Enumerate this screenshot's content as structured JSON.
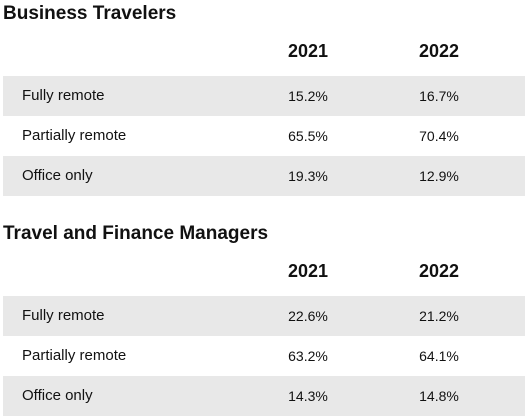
{
  "chart_data": [
    {
      "type": "table",
      "title": "Business Travelers",
      "columns": [
        "2021",
        "2022"
      ],
      "rows": [
        {
          "label": "Fully remote",
          "values": [
            "15.2%",
            "16.7%"
          ]
        },
        {
          "label": "Partially remote",
          "values": [
            "65.5%",
            "70.4%"
          ]
        },
        {
          "label": "Office only",
          "values": [
            "19.3%",
            "12.9%"
          ]
        }
      ]
    },
    {
      "type": "table",
      "title": "Travel and Finance Managers",
      "columns": [
        "2021",
        "2022"
      ],
      "rows": [
        {
          "label": "Fully remote",
          "values": [
            "22.6%",
            "21.2%"
          ]
        },
        {
          "label": "Partially remote",
          "values": [
            "63.2%",
            "64.1%"
          ]
        },
        {
          "label": "Office only",
          "values": [
            "14.3%",
            "14.8%"
          ]
        }
      ]
    }
  ],
  "colors": {
    "row_shade": "#e8e8e8",
    "text": "#111111",
    "background": "#ffffff"
  }
}
